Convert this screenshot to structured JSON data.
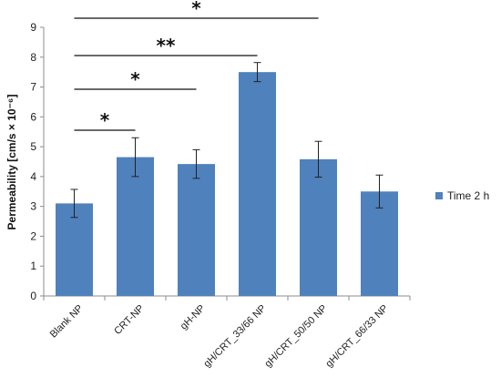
{
  "chart_data": {
    "type": "bar",
    "categories": [
      "Blank NP",
      "CRT-NP",
      "gH-NP",
      "gH/CRT_33/66 NP",
      "gH/CRT_50/50 NP",
      "gH/CRT_66/33 NP"
    ],
    "series": [
      {
        "name": "Time 2 h",
        "values": [
          3.1,
          4.65,
          4.42,
          7.5,
          4.58,
          3.5
        ],
        "error": [
          0.47,
          0.65,
          0.48,
          0.32,
          0.6,
          0.55
        ],
        "color": "#4f81bd"
      }
    ],
    "ylabel": "Permeability [cm/s × 10⁻⁶]",
    "xlabel": "",
    "title": "",
    "ylim": [
      0,
      9
    ],
    "yticks": [
      0,
      1,
      2,
      3,
      4,
      5,
      6,
      7,
      8,
      9
    ],
    "legend_position": "right",
    "grid": false,
    "significance": [
      {
        "from": 0,
        "to": 1,
        "label": "*"
      },
      {
        "from": 0,
        "to": 2,
        "label": "*"
      },
      {
        "from": 0,
        "to": 3,
        "label": "**"
      },
      {
        "from": 0,
        "to": 4,
        "label": "*"
      }
    ]
  }
}
